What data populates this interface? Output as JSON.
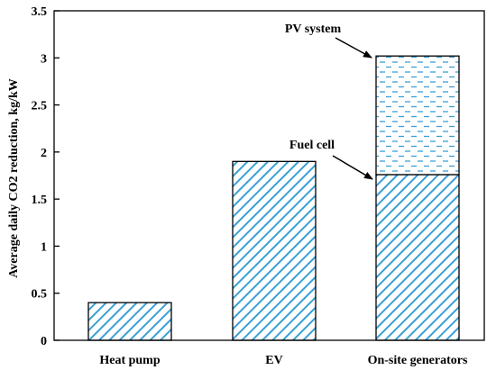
{
  "chart_data": {
    "type": "bar",
    "stacked": true,
    "categories": [
      "Heat pump",
      "EV",
      "On-site generators"
    ],
    "series": [
      {
        "key": "base",
        "values": [
          0.4,
          1.9,
          1.76
        ],
        "pattern": "diagonal-hatch"
      },
      {
        "key": "pv",
        "values": [
          0,
          0,
          1.26
        ],
        "pattern": "dashed-dots"
      }
    ],
    "ylabel": "Average daily CO2 reduction, kg/kW",
    "xlabel": "",
    "ylim": [
      0,
      3.5
    ],
    "yticks": [
      "0",
      "0.5",
      "1",
      "1.5",
      "2",
      "2.5",
      "3",
      "3.5"
    ],
    "grid": false,
    "annotations": [
      {
        "text": "PV system",
        "category": "On-site generators",
        "y": 3.02
      },
      {
        "text": "Fuel cell",
        "category": "On-site generators",
        "y": 1.76
      }
    ],
    "colors": {
      "hatch": "#3aa0d6",
      "axis": "#000000",
      "bar_edge": "#000000"
    }
  }
}
